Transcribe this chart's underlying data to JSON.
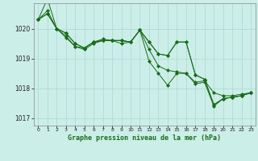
{
  "title": "Graphe pression niveau de la mer (hPa)",
  "background_color": "#cceee8",
  "grid_color": "#aad8d2",
  "line_color": "#1a6b1a",
  "xlim": [
    -0.5,
    23.5
  ],
  "ylim": [
    1016.75,
    1020.85
  ],
  "yticks": [
    1017,
    1018,
    1019,
    1020
  ],
  "xticks": [
    0,
    1,
    2,
    3,
    4,
    5,
    6,
    7,
    8,
    9,
    10,
    11,
    12,
    13,
    14,
    15,
    16,
    17,
    18,
    19,
    20,
    21,
    22,
    23
  ],
  "series": [
    [
      1020.3,
      1021.0,
      1020.0,
      1019.85,
      1019.5,
      1019.35,
      1019.55,
      1019.65,
      1019.6,
      1019.6,
      1019.55,
      1019.95,
      1019.55,
      1019.15,
      1019.1,
      1019.55,
      1019.55,
      1018.45,
      1018.3,
      1017.45,
      1017.65,
      1017.7,
      1017.75,
      1017.85
    ],
    [
      1020.3,
      1020.6,
      1020.0,
      1019.75,
      1019.4,
      1019.35,
      1019.55,
      1019.6,
      1019.6,
      1019.6,
      1019.55,
      1019.95,
      1019.3,
      1018.75,
      1018.6,
      1018.55,
      1018.5,
      1018.2,
      1018.25,
      1017.85,
      1017.75,
      1017.75,
      1017.8,
      1017.85
    ],
    [
      1020.3,
      1020.5,
      1020.0,
      1019.7,
      1019.4,
      1019.3,
      1019.5,
      1019.6,
      1019.6,
      1019.5,
      1019.55,
      1019.95,
      1018.9,
      1018.5,
      1018.1,
      1018.5,
      1018.5,
      1018.15,
      1018.2,
      1017.4,
      1017.65,
      1017.7,
      1017.75,
      1017.85
    ],
    [
      1020.3,
      1020.5,
      1020.0,
      1019.85,
      1019.5,
      1019.35,
      1019.55,
      1019.6,
      1019.6,
      1019.6,
      1019.55,
      1019.95,
      1019.55,
      1019.15,
      1019.1,
      1019.55,
      1019.55,
      1018.45,
      1018.3,
      1017.45,
      1017.65,
      1017.7,
      1017.75,
      1017.85
    ]
  ]
}
